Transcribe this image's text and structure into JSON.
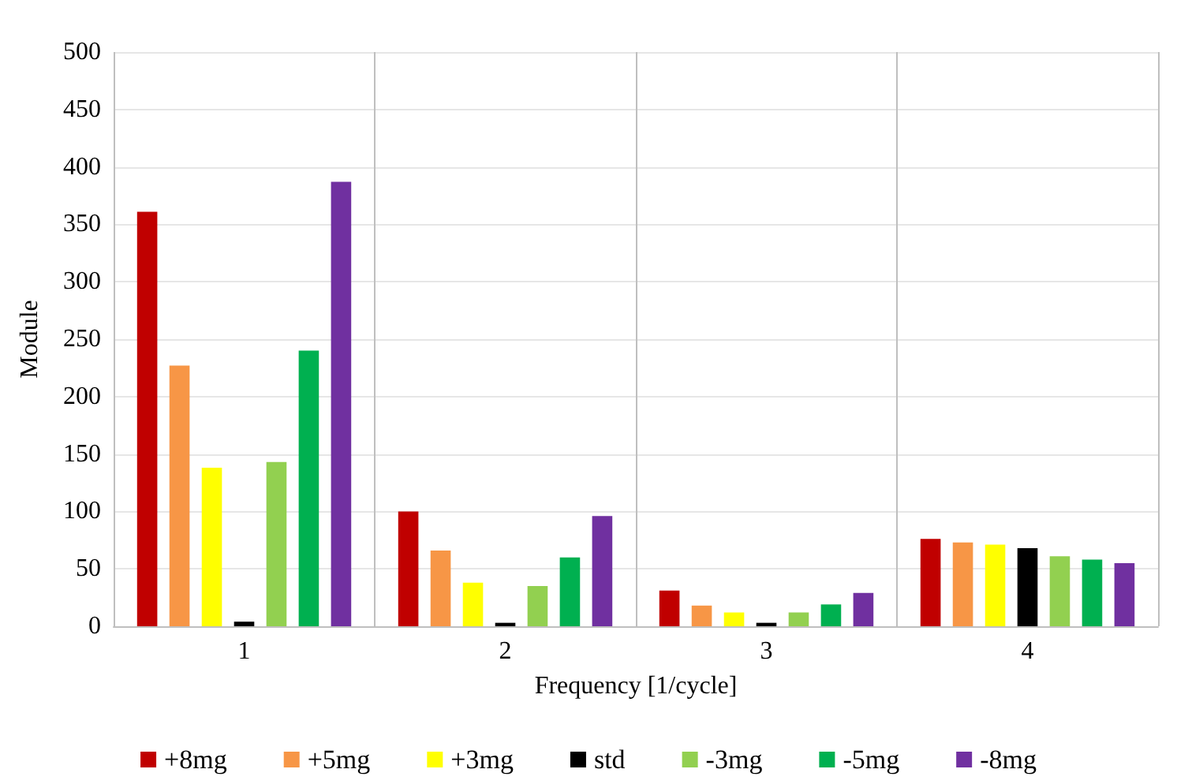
{
  "chart_data": {
    "type": "bar",
    "xlabel": "Frequency [1/cycle]",
    "ylabel": "Module",
    "categories": [
      "1",
      "2",
      "3",
      "4"
    ],
    "series": [
      {
        "name": "+8mg",
        "color": "#c00000",
        "values": [
          361,
          100,
          31,
          76
        ]
      },
      {
        "name": "+5mg",
        "color": "#f79646",
        "values": [
          227,
          66,
          18,
          73
        ]
      },
      {
        "name": "+3mg",
        "color": "#ffff00",
        "values": [
          138,
          38,
          12,
          71
        ]
      },
      {
        "name": "std",
        "color": "#000000",
        "values": [
          4,
          3,
          3,
          68
        ]
      },
      {
        "name": "-3mg",
        "color": "#92d050",
        "values": [
          143,
          35,
          12,
          61
        ]
      },
      {
        "name": "-5mg",
        "color": "#00b050",
        "values": [
          240,
          60,
          19,
          58
        ]
      },
      {
        "name": "-8mg",
        "color": "#7030a0",
        "values": [
          387,
          96,
          29,
          55
        ]
      }
    ],
    "ylim": [
      0,
      500
    ],
    "yticks": [
      0,
      50,
      100,
      150,
      200,
      250,
      300,
      350,
      400,
      450,
      500
    ],
    "grid": true,
    "legend": "bottom"
  }
}
